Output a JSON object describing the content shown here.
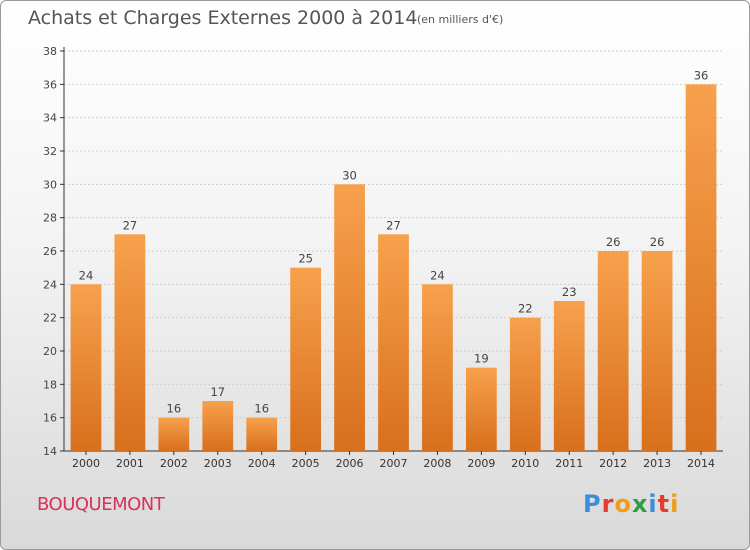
{
  "title": "Achats et Charges Externes 2000 à 2014",
  "subtitle": "(en milliers d'€)",
  "commune": "BOUQUEMONT",
  "logo": {
    "text": "Proxiti",
    "colors": [
      "#3a8fd9",
      "#e63c2f",
      "#f39c12",
      "#2f9e44",
      "#3a8fd9",
      "#e63c2f",
      "#f39c12"
    ]
  },
  "colors": {
    "bar_top": "#f7a14d",
    "bar_bottom": "#d86f1c",
    "axis": "#333333",
    "grid": "#cfcfcf"
  },
  "chart_data": {
    "type": "bar",
    "title": "Achats et Charges Externes 2000 à 2014",
    "categories": [
      "2000",
      "2001",
      "2002",
      "2003",
      "2004",
      "2005",
      "2006",
      "2007",
      "2008",
      "2009",
      "2010",
      "2011",
      "2012",
      "2013",
      "2014"
    ],
    "values": [
      24,
      27,
      16,
      17,
      16,
      25,
      30,
      27,
      24,
      19,
      22,
      23,
      26,
      26,
      36
    ],
    "ylim": [
      14,
      38
    ],
    "yticks": [
      14,
      16,
      18,
      20,
      22,
      24,
      26,
      28,
      30,
      32,
      34,
      36,
      38
    ],
    "grid": true,
    "data_labels": true
  }
}
